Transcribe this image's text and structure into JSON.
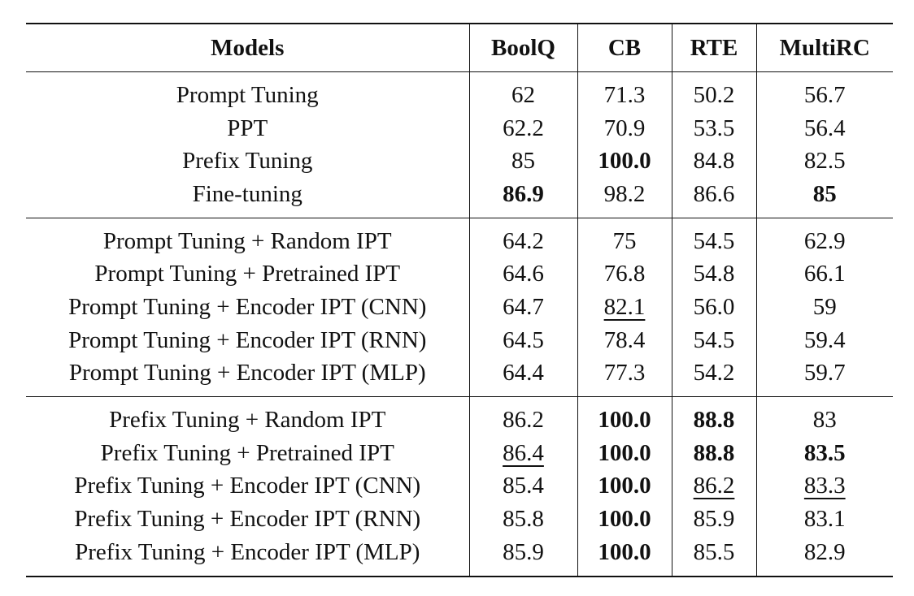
{
  "table": {
    "headers": {
      "model": "Models",
      "boolq": "BoolQ",
      "cb": "CB",
      "rte": "RTE",
      "multirc": "MultiRC"
    },
    "groups": [
      {
        "rows": [
          {
            "model": "Prompt Tuning",
            "boolq": "62",
            "cb": "71.3",
            "rte": "50.2",
            "multirc": "56.7"
          },
          {
            "model": "PPT",
            "boolq": "62.2",
            "cb": "70.9",
            "rte": "53.5",
            "multirc": "56.4"
          },
          {
            "model": "Prefix Tuning",
            "boolq": "85",
            "cb": "100.0",
            "rte": "84.8",
            "multirc": "82.5"
          },
          {
            "model": "Fine-tuning",
            "boolq": "86.9",
            "cb": "98.2",
            "rte": "86.6",
            "multirc": "85"
          }
        ]
      },
      {
        "rows": [
          {
            "model": "Prompt Tuning + Random IPT",
            "boolq": "64.2",
            "cb": "75",
            "rte": "54.5",
            "multirc": "62.9"
          },
          {
            "model": "Prompt Tuning + Pretrained IPT",
            "boolq": "64.6",
            "cb": "76.8",
            "rte": "54.8",
            "multirc": "66.1"
          },
          {
            "model": "Prompt Tuning + Encoder IPT (CNN)",
            "boolq": "64.7",
            "cb": "82.1",
            "rte": "56.0",
            "multirc": "59"
          },
          {
            "model": "Prompt Tuning + Encoder IPT (RNN)",
            "boolq": "64.5",
            "cb": "78.4",
            "rte": "54.5",
            "multirc": "59.4"
          },
          {
            "model": "Prompt Tuning + Encoder IPT (MLP)",
            "boolq": "64.4",
            "cb": "77.3",
            "rte": "54.2",
            "multirc": "59.7"
          }
        ]
      },
      {
        "rows": [
          {
            "model": "Prefix Tuning + Random IPT",
            "boolq": "86.2",
            "cb": "100.0",
            "rte": "88.8",
            "multirc": "83"
          },
          {
            "model": "Prefix Tuning + Pretrained IPT",
            "boolq": "86.4",
            "cb": "100.0",
            "rte": "88.8",
            "multirc": "83.5"
          },
          {
            "model": "Prefix Tuning + Encoder IPT (CNN)",
            "boolq": "85.4",
            "cb": "100.0",
            "rte": "86.2",
            "multirc": "83.3"
          },
          {
            "model": "Prefix Tuning + Encoder IPT (RNN)",
            "boolq": "85.8",
            "cb": "100.0",
            "rte": "85.9",
            "multirc": "83.1"
          },
          {
            "model": "Prefix Tuning + Encoder IPT (MLP)",
            "boolq": "85.9",
            "cb": "100.0",
            "rte": "85.5",
            "multirc": "82.9"
          }
        ]
      }
    ]
  }
}
